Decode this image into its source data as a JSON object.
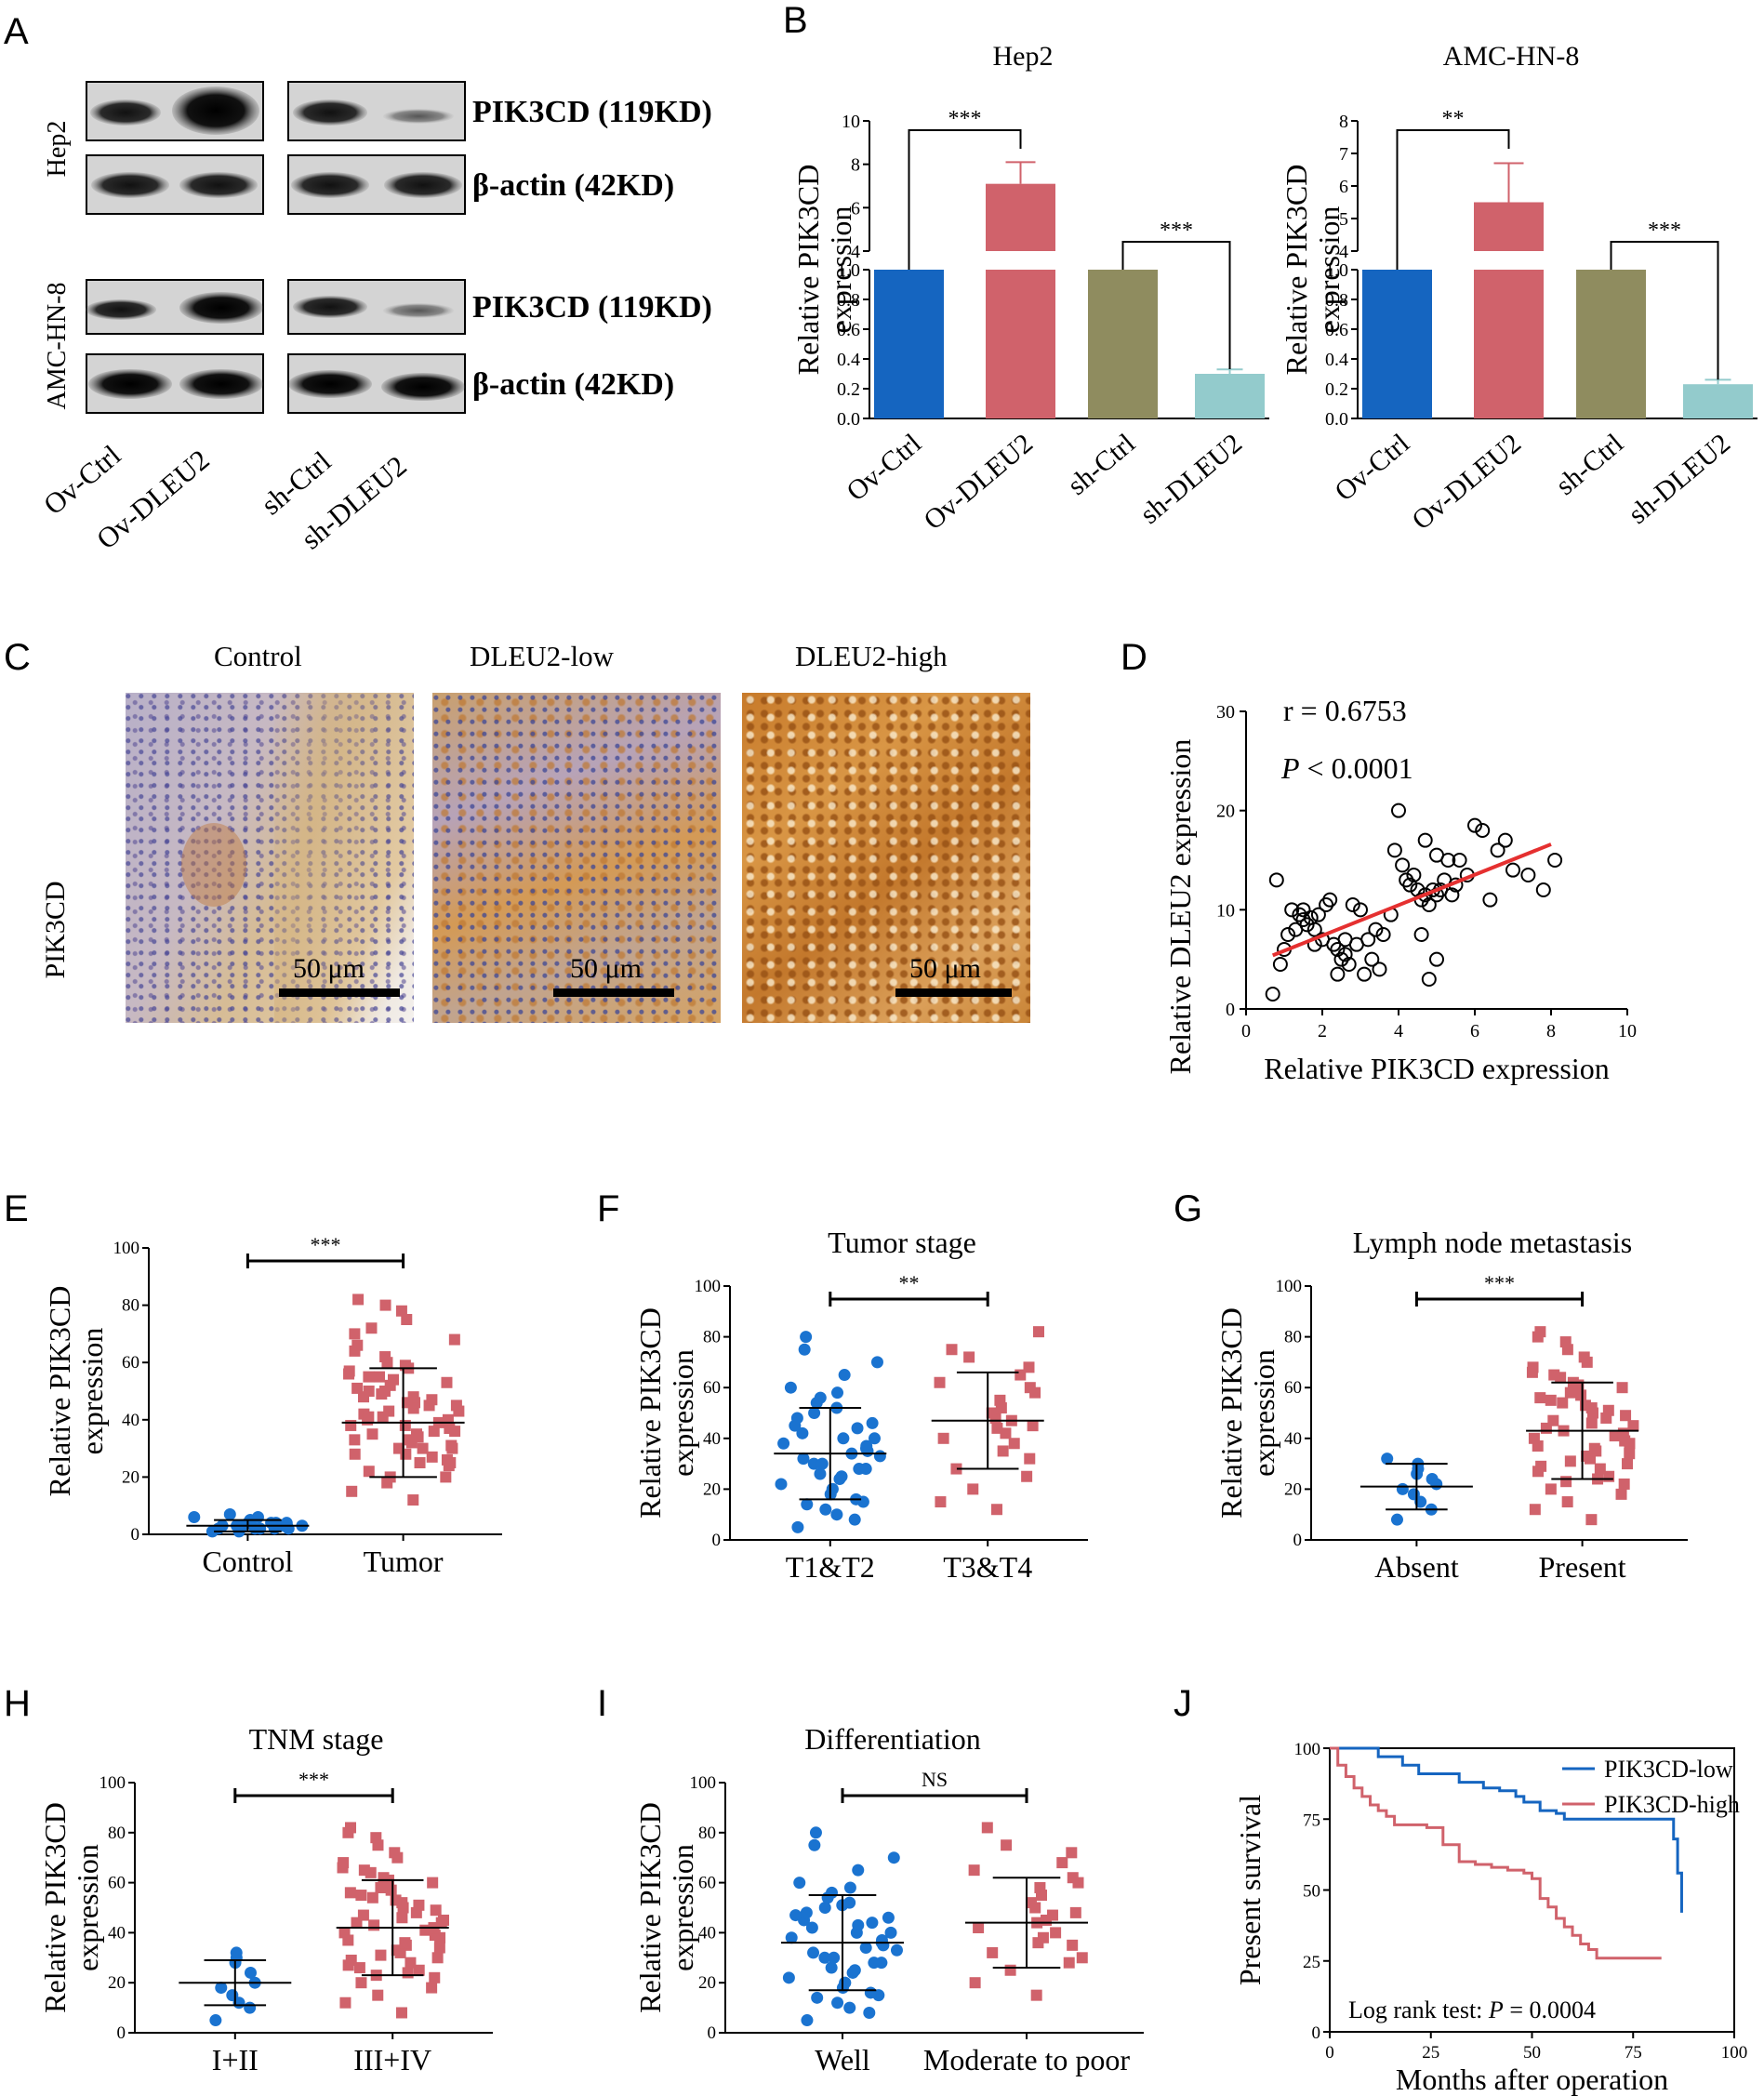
{
  "panel_letters": {
    "A": "A",
    "B": "B",
    "C": "C",
    "D": "D",
    "E": "E",
    "F": "F",
    "G": "G",
    "H": "H",
    "I": "I",
    "J": "J"
  },
  "panelA": {
    "cell_lines": [
      "Hep2",
      "AMC-HN-8"
    ],
    "proteins": [
      "PIK3CD (119KD)",
      "β-actin (42KD)"
    ],
    "lanes": [
      "Ov-Ctrl",
      "Ov-DLEU2",
      "sh-Ctrl",
      "sh-DLEU2"
    ]
  },
  "panelC": {
    "titles": [
      "Control",
      "DLEU2-low",
      "DLEU2-high"
    ],
    "row_label": "PIK3CD",
    "scale_bar": "50 μm"
  },
  "chart_data": [
    {
      "panel": "B-left",
      "type": "bar",
      "title": "Hep2",
      "ylabel": "Relative PIK3CD expression",
      "categories": [
        "Ov-Ctrl",
        "Ov-DLEU2",
        "sh-Ctrl",
        "sh-DLEU2"
      ],
      "values": [
        1.0,
        7.1,
        1.0,
        0.3
      ],
      "errors": [
        0,
        1.0,
        0,
        0.03
      ],
      "colors": [
        "#1565c0",
        "#d0626b",
        "#8f8c5f",
        "#93cbcc"
      ],
      "ylim_lower": [
        0,
        1.0
      ],
      "ylim_upper": [
        4,
        10
      ],
      "yticks_lower": [
        "0.0",
        "0.2",
        "0.4",
        "0.6",
        "0.8",
        "1.0"
      ],
      "yticks_upper": [
        "4",
        "6",
        "8",
        "10"
      ],
      "significance": [
        "***",
        "***"
      ]
    },
    {
      "panel": "B-right",
      "type": "bar",
      "title": "AMC-HN-8",
      "ylabel": "Relative PIK3CD expression",
      "categories": [
        "Ov-Ctrl",
        "Ov-DLEU2",
        "sh-Ctrl",
        "sh-DLEU2"
      ],
      "values": [
        1.0,
        5.5,
        1.0,
        0.23
      ],
      "errors": [
        0,
        1.2,
        0,
        0.03
      ],
      "colors": [
        "#1565c0",
        "#d0626b",
        "#8f8c5f",
        "#93cbcc"
      ],
      "ylim_lower": [
        0,
        1.0
      ],
      "ylim_upper": [
        4,
        8
      ],
      "yticks_lower": [
        "0.0",
        "0.2",
        "0.4",
        "0.6",
        "0.8",
        "1.0"
      ],
      "yticks_upper": [
        "4",
        "5",
        "6",
        "7",
        "8"
      ],
      "significance": [
        "**",
        "***"
      ]
    },
    {
      "panel": "D",
      "type": "scatter",
      "xlabel": "Relative PIK3CD expression",
      "ylabel": "Relative DLEU2 expression",
      "xlim": [
        0,
        10
      ],
      "ylim": [
        0,
        30
      ],
      "xticks": [
        "0",
        "2",
        "4",
        "6",
        "8",
        "10"
      ],
      "yticks": [
        "0",
        "10",
        "20",
        "30"
      ],
      "annotation_r": "r = 0.6753",
      "annotation_p_label": "P",
      "annotation_p_value": " < 0.0001",
      "fit_line": {
        "x": [
          0.7,
          8.0
        ],
        "y": [
          5.4,
          16.6
        ]
      },
      "points_x": [
        0.7,
        0.8,
        0.9,
        1.0,
        1.1,
        1.2,
        1.3,
        1.4,
        1.5,
        1.5,
        1.6,
        1.7,
        1.8,
        1.8,
        1.9,
        2.0,
        2.1,
        2.2,
        2.3,
        2.4,
        2.4,
        2.5,
        2.6,
        2.6,
        2.7,
        2.8,
        2.9,
        3.0,
        3.1,
        3.2,
        3.3,
        3.4,
        3.5,
        3.6,
        3.8,
        4.0,
        4.1,
        4.2,
        4.3,
        4.4,
        4.5,
        4.6,
        4.7,
        4.7,
        4.8,
        4.9,
        5.0,
        5.0,
        5.1,
        5.2,
        5.3,
        5.4,
        5.5,
        5.6,
        5.8,
        6.0,
        6.2,
        6.4,
        6.6,
        6.8,
        7.0,
        7.4,
        7.8,
        8.1,
        4.8,
        5.0,
        4.6,
        3.9
      ],
      "points_y": [
        1.5,
        13.0,
        4.5,
        6.0,
        7.5,
        10.0,
        8.0,
        9.5,
        9.0,
        10.0,
        8.5,
        9.2,
        6.5,
        8.0,
        9.5,
        7.0,
        10.5,
        11.0,
        6.5,
        3.5,
        6.0,
        5.0,
        5.5,
        7.0,
        4.5,
        10.5,
        6.5,
        10.0,
        3.5,
        7.0,
        5.0,
        8.0,
        4.0,
        7.5,
        9.5,
        20.0,
        14.5,
        13.0,
        12.5,
        13.5,
        12.0,
        11.0,
        11.5,
        17.0,
        10.5,
        12.0,
        11.5,
        15.5,
        12.0,
        13.0,
        15.0,
        11.5,
        12.5,
        15.0,
        13.5,
        18.5,
        18.0,
        11.0,
        16.0,
        17.0,
        14.0,
        13.5,
        12.0,
        15.0,
        3.0,
        5.0,
        7.5,
        16.0
      ]
    },
    {
      "panel": "E",
      "type": "scatter",
      "title": "",
      "ylabel": "Relative PIK3CD expression",
      "categories": [
        "Control",
        "Tumor"
      ],
      "ylim": [
        0,
        100
      ],
      "yticks": [
        "0",
        "20",
        "40",
        "60",
        "80",
        "100"
      ],
      "means": [
        3,
        39
      ],
      "sd_low": [
        1,
        20
      ],
      "sd_high": [
        5,
        58
      ],
      "significance": "***",
      "group_values": [
        [
          1,
          2,
          2,
          3,
          3,
          3,
          4,
          4,
          5,
          5,
          6,
          6,
          2,
          3,
          4,
          7,
          1,
          2,
          3,
          4,
          2,
          3
        ],
        [
          12,
          15,
          18,
          20,
          22,
          24,
          25,
          27,
          28,
          30,
          30,
          32,
          33,
          34,
          35,
          36,
          37,
          38,
          39,
          40,
          41,
          42,
          43,
          44,
          45,
          46,
          47,
          48,
          49,
          50,
          51,
          52,
          53,
          54,
          55,
          56,
          57,
          58,
          59,
          60,
          62,
          64,
          66,
          68,
          70,
          72,
          75,
          78,
          80,
          82,
          20,
          25,
          30,
          35,
          40,
          45,
          50,
          55,
          28,
          33,
          38,
          43,
          48,
          36,
          41,
          46,
          26,
          31
        ]
      ]
    },
    {
      "panel": "F",
      "type": "scatter",
      "title": "Tumor stage",
      "ylabel": "Relative PIK3CD expression",
      "categories": [
        "T1&T2",
        "T3&T4"
      ],
      "ylim": [
        0,
        100
      ],
      "yticks": [
        "0",
        "20",
        "40",
        "60",
        "80",
        "100"
      ],
      "means": [
        34,
        47
      ],
      "sd_low": [
        16,
        28
      ],
      "sd_high": [
        52,
        66
      ],
      "significance": "**",
      "group_values": [
        [
          5,
          8,
          10,
          12,
          14,
          15,
          16,
          18,
          20,
          20,
          22,
          24,
          25,
          26,
          28,
          30,
          30,
          32,
          33,
          34,
          35,
          36,
          38,
          40,
          40,
          42,
          44,
          45,
          46,
          48,
          50,
          52,
          54,
          56,
          58,
          60,
          65,
          70,
          75,
          80,
          28,
          37
        ],
        [
          12,
          15,
          20,
          25,
          28,
          32,
          35,
          38,
          40,
          42,
          45,
          48,
          50,
          52,
          55,
          58,
          60,
          62,
          65,
          68,
          72,
          75,
          82,
          44,
          47
        ]
      ]
    },
    {
      "panel": "G",
      "type": "scatter",
      "title": "Lymph node metastasis",
      "ylabel": "Relative PIK3CD expression",
      "categories": [
        "Absent",
        "Present"
      ],
      "ylim": [
        0,
        100
      ],
      "yticks": [
        "0",
        "20",
        "40",
        "60",
        "80",
        "100"
      ],
      "means": [
        21,
        43
      ],
      "sd_low": [
        12,
        24
      ],
      "sd_high": [
        30,
        62
      ],
      "significance": "***",
      "group_values": [
        [
          8,
          12,
          15,
          18,
          20,
          22,
          24,
          26,
          28,
          30,
          32
        ],
        [
          8,
          12,
          15,
          18,
          20,
          22,
          24,
          25,
          27,
          28,
          30,
          32,
          33,
          35,
          36,
          38,
          39,
          40,
          41,
          42,
          43,
          44,
          45,
          46,
          48,
          50,
          51,
          52,
          54,
          55,
          56,
          58,
          60,
          62,
          64,
          66,
          68,
          70,
          72,
          75,
          78,
          80,
          82,
          34,
          37,
          47,
          53,
          57,
          23,
          29,
          31,
          49,
          61,
          65
        ]
      ]
    },
    {
      "panel": "H",
      "type": "scatter",
      "title": "TNM stage",
      "ylabel": "Relative PIK3CD expression",
      "categories": [
        "I+II",
        "III+IV"
      ],
      "ylim": [
        0,
        100
      ],
      "yticks": [
        "0",
        "20",
        "40",
        "60",
        "80",
        "100"
      ],
      "means": [
        20,
        42
      ],
      "sd_low": [
        11,
        23
      ],
      "sd_high": [
        29,
        61
      ],
      "significance": "***",
      "group_values": [
        [
          5,
          10,
          12,
          15,
          18,
          20,
          24,
          28,
          30,
          32
        ],
        [
          8,
          12,
          15,
          18,
          20,
          22,
          24,
          25,
          27,
          28,
          30,
          32,
          33,
          35,
          36,
          38,
          39,
          40,
          41,
          42,
          43,
          44,
          45,
          46,
          48,
          50,
          51,
          52,
          54,
          55,
          56,
          58,
          60,
          62,
          64,
          66,
          68,
          70,
          72,
          75,
          78,
          80,
          82,
          34,
          37,
          47,
          53,
          57,
          23,
          29,
          31,
          49,
          61,
          65,
          26,
          44
        ]
      ]
    },
    {
      "panel": "I",
      "type": "scatter",
      "title": "Differentiation",
      "ylabel": "Relative PIK3CD expression",
      "categories": [
        "Well",
        "Moderate to poor"
      ],
      "ylim": [
        0,
        100
      ],
      "yticks": [
        "0",
        "20",
        "40",
        "60",
        "80",
        "100"
      ],
      "means": [
        36,
        44
      ],
      "sd_low": [
        17,
        26
      ],
      "sd_high": [
        55,
        62
      ],
      "significance": "NS",
      "group_values": [
        [
          5,
          8,
          10,
          12,
          14,
          15,
          16,
          18,
          20,
          20,
          22,
          24,
          25,
          26,
          28,
          30,
          30,
          32,
          33,
          34,
          35,
          36,
          38,
          40,
          40,
          42,
          44,
          45,
          46,
          48,
          50,
          52,
          54,
          56,
          58,
          60,
          65,
          70,
          75,
          80,
          28,
          37,
          43,
          47,
          51
        ],
        [
          15,
          20,
          25,
          28,
          32,
          35,
          38,
          40,
          42,
          45,
          48,
          50,
          52,
          55,
          58,
          60,
          62,
          65,
          68,
          72,
          75,
          82,
          30,
          44,
          47,
          36
        ]
      ]
    },
    {
      "panel": "J",
      "type": "line",
      "xlabel": "Months after operation",
      "ylabel": "Present survival",
      "xlim": [
        0,
        100
      ],
      "ylim": [
        0,
        100
      ],
      "xticks": [
        "0",
        "25",
        "50",
        "75",
        "100"
      ],
      "yticks": [
        "0",
        "25",
        "50",
        "75",
        "100"
      ],
      "annotation_label": "Log rank test: ",
      "annotation_p_label": "P",
      "annotation_p_value": " = 0.0004",
      "series": [
        {
          "name": "PIK3CD-low",
          "color": "#1565c0",
          "x": [
            0,
            8,
            12,
            18,
            22,
            28,
            32,
            38,
            42,
            46,
            48,
            52,
            54,
            56,
            58,
            62,
            84,
            85,
            86,
            87
          ],
          "y": [
            100,
            100,
            97,
            94,
            91,
            91,
            88,
            86,
            85,
            83,
            81,
            78,
            78,
            77,
            75,
            75,
            75,
            68,
            56,
            42
          ]
        },
        {
          "name": "PIK3CD-high",
          "color": "#d0626b",
          "x": [
            0,
            2,
            4,
            6,
            8,
            10,
            12,
            14,
            16,
            18,
            20,
            24,
            28,
            32,
            36,
            40,
            44,
            48,
            50,
            52,
            54,
            56,
            58,
            60,
            62,
            64,
            66,
            70,
            74,
            78,
            82
          ],
          "y": [
            100,
            94,
            90,
            86,
            83,
            80,
            78,
            76,
            73,
            73,
            73,
            72,
            66,
            60,
            59,
            58,
            57,
            56,
            54,
            47,
            44,
            40,
            37,
            34,
            31,
            29,
            26,
            26,
            26,
            26,
            26
          ]
        }
      ]
    }
  ]
}
